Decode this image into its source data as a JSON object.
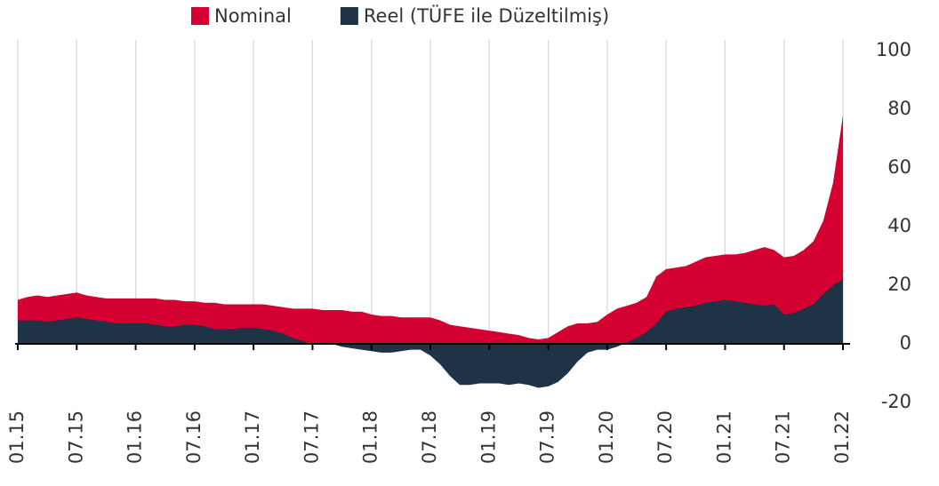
{
  "chart_data": {
    "type": "area",
    "categories": [
      "01.15",
      null,
      null,
      null,
      null,
      null,
      "07.15",
      null,
      null,
      null,
      null,
      null,
      "01.16",
      null,
      null,
      null,
      null,
      null,
      "07.16",
      null,
      null,
      null,
      null,
      null,
      "01.17",
      null,
      null,
      null,
      null,
      null,
      "07.17",
      null,
      null,
      null,
      null,
      null,
      "01.18",
      null,
      null,
      null,
      null,
      null,
      "07.18",
      null,
      null,
      null,
      null,
      null,
      "01.19",
      null,
      null,
      null,
      null,
      null,
      "07.19",
      null,
      null,
      null,
      null,
      null,
      "01.20",
      null,
      null,
      null,
      null,
      null,
      "07.20",
      null,
      null,
      null,
      null,
      null,
      "01.21",
      null,
      null,
      null,
      null,
      null,
      "07.21",
      null,
      null,
      null,
      null,
      null,
      "01.22"
    ],
    "series": [
      {
        "name": "Nominal",
        "color": "#d50032",
        "values": [
          15,
          16,
          16.5,
          16,
          16.5,
          17,
          17.5,
          16.5,
          16,
          15.5,
          15.5,
          15.5,
          15.5,
          15.5,
          15.5,
          15,
          15,
          14.5,
          14.5,
          14,
          14,
          13.5,
          13.5,
          13.5,
          13.5,
          13.5,
          13,
          12.5,
          12,
          12,
          12,
          11.5,
          11.5,
          11.5,
          11,
          11,
          10,
          9.5,
          9.5,
          9,
          9,
          9,
          9,
          8,
          6.5,
          6,
          5.5,
          5,
          4.5,
          4,
          3.5,
          3,
          2,
          1.5,
          2,
          4,
          6,
          7,
          7,
          7.5,
          10,
          12,
          13,
          14,
          16,
          23,
          25.5,
          26,
          26.5,
          28,
          29.5,
          30,
          30.5,
          30.5,
          31,
          32,
          33,
          32,
          29.5,
          30,
          32,
          35,
          42,
          55,
          78
        ]
      },
      {
        "name": "Reel (TÜFE ile Düzeltilmiş)",
        "color": "#1f3347",
        "values": [
          8,
          8,
          8,
          7.5,
          8,
          8.5,
          9,
          8.5,
          8,
          7.5,
          7,
          7,
          7,
          7,
          6.5,
          6,
          6,
          6.5,
          6.5,
          6,
          5,
          5,
          5,
          5.5,
          5.5,
          5,
          4.5,
          3.5,
          2,
          1,
          0,
          0,
          0,
          -1,
          -1.5,
          -2,
          -2.5,
          -3,
          -3,
          -2.5,
          -2,
          -2,
          -4,
          -7,
          -11,
          -14,
          -14,
          -13.5,
          -13.5,
          -13.5,
          -14,
          -13.5,
          -14,
          -15,
          -14.5,
          -13,
          -10,
          -6,
          -3,
          -2,
          -2,
          -1,
          0.5,
          2,
          4,
          7,
          11,
          12,
          12.5,
          13,
          14,
          14.5,
          15,
          14.5,
          14,
          13.5,
          13,
          13.5,
          10,
          10.5,
          12,
          13.5,
          17,
          20,
          22
        ]
      }
    ],
    "ylim": [
      -20,
      100
    ],
    "yticks": [
      -20,
      0,
      20,
      40,
      60,
      80,
      100
    ],
    "grid": "x",
    "legend": "top"
  }
}
